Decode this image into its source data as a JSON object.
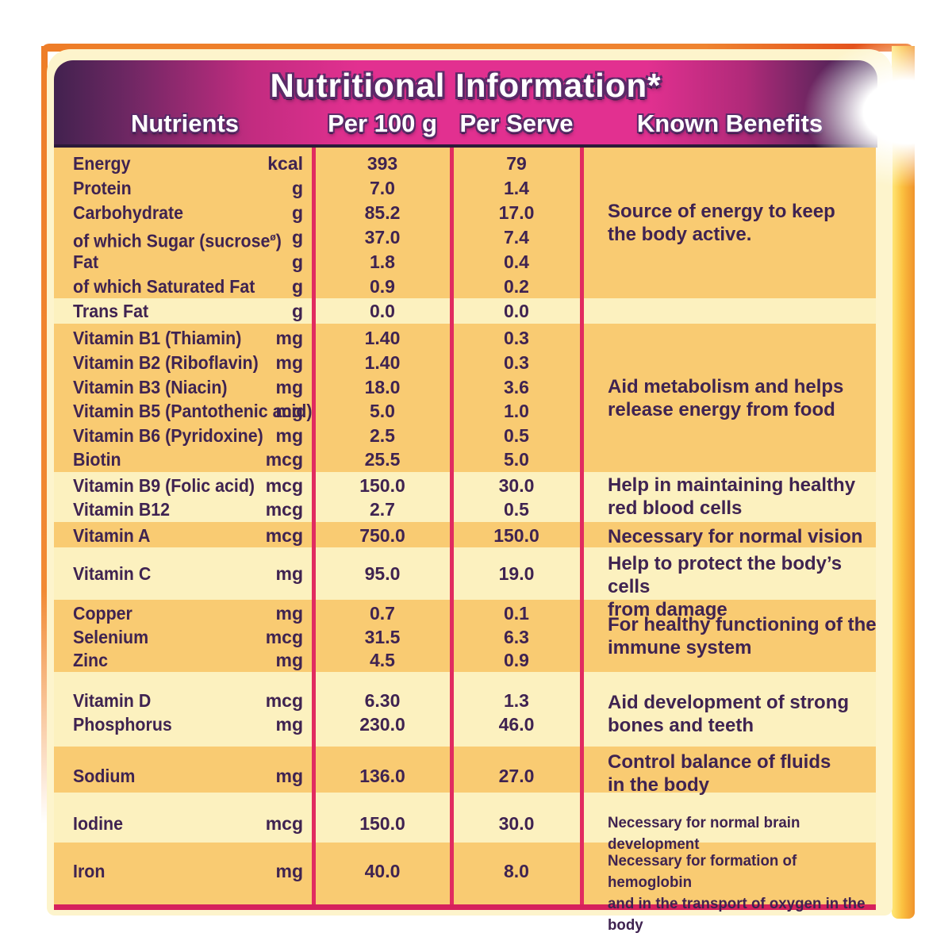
{
  "title": "Nutritional Information*",
  "columns": [
    "Nutrients",
    "Per 100 g",
    "Per Serve",
    "Known Benefits"
  ],
  "rows": [
    {
      "name": "Energy",
      "unit": "kcal",
      "per_100g": "393",
      "per_serve": "79"
    },
    {
      "name": "Protein",
      "unit": "g",
      "per_100g": "7.0",
      "per_serve": "1.4"
    },
    {
      "name": "Carbohydrate",
      "unit": "g",
      "per_100g": "85.2",
      "per_serve": "17.0"
    },
    {
      "name": "of which Sugar (sucrose",
      "sup": "ø",
      "name_end": ")",
      "unit": "g",
      "per_100g": "37.0",
      "per_serve": "7.4"
    },
    {
      "name": "Fat",
      "unit": "g",
      "per_100g": "1.8",
      "per_serve": "0.4"
    },
    {
      "name": "of which Saturated Fat",
      "unit": "g",
      "per_100g": "0.9",
      "per_serve": "0.2"
    },
    {
      "name": "Trans Fat",
      "unit": "g",
      "per_100g": "0.0",
      "per_serve": "0.0"
    },
    {
      "name": "Vitamin B1 (Thiamin)",
      "unit": "mg",
      "per_100g": "1.40",
      "per_serve": "0.3"
    },
    {
      "name": "Vitamin B2 (Riboflavin)",
      "unit": "mg",
      "per_100g": "1.40",
      "per_serve": "0.3"
    },
    {
      "name": "Vitamin B3 (Niacin)",
      "unit": "mg",
      "per_100g": "18.0",
      "per_serve": "3.6"
    },
    {
      "name": "Vitamin B5 (Pantothenic acid)",
      "unit": "mg",
      "per_100g": "5.0",
      "per_serve": "1.0"
    },
    {
      "name": "Vitamin B6 (Pyridoxine)",
      "unit": "mg",
      "per_100g": "2.5",
      "per_serve": "0.5"
    },
    {
      "name": "Biotin",
      "unit": "mcg",
      "per_100g": "25.5",
      "per_serve": "5.0"
    },
    {
      "name": "Vitamin B9 (Folic acid)",
      "unit": "mcg",
      "per_100g": "150.0",
      "per_serve": "30.0"
    },
    {
      "name": "Vitamin B12",
      "unit": "mcg",
      "per_100g": "2.7",
      "per_serve": "0.5"
    },
    {
      "name": "Vitamin A",
      "unit": "mcg",
      "per_100g": "750.0",
      "per_serve": "150.0"
    },
    {
      "name": "Vitamin C",
      "unit": "mg",
      "per_100g": "95.0",
      "per_serve": "19.0"
    },
    {
      "name": "Copper",
      "unit": "mg",
      "per_100g": "0.7",
      "per_serve": "0.1"
    },
    {
      "name": "Selenium",
      "unit": "mcg",
      "per_100g": "31.5",
      "per_serve": "6.3"
    },
    {
      "name": "Zinc",
      "unit": "mg",
      "per_100g": "4.5",
      "per_serve": "0.9"
    },
    {
      "name": "Vitamin D",
      "unit": "mcg",
      "per_100g": "6.30",
      "per_serve": "1.3"
    },
    {
      "name": "Phosphorus",
      "unit": "mg",
      "per_100g": "230.0",
      "per_serve": "46.0"
    },
    {
      "name": "Sodium",
      "unit": "mg",
      "per_100g": "136.0",
      "per_serve": "27.0"
    },
    {
      "name": "Iodine",
      "unit": "mcg",
      "per_100g": "150.0",
      "per_serve": "30.0"
    },
    {
      "name": "Iron",
      "unit": "mg",
      "per_100g": "40.0",
      "per_serve": "8.0"
    }
  ],
  "benefits": [
    {
      "lines": [
        "Source of energy to keep",
        "the body active."
      ]
    },
    {
      "lines": [
        "Aid metabolism and helps",
        "release energy from food"
      ]
    },
    {
      "lines": [
        "Help in maintaining healthy",
        "red blood cells"
      ]
    },
    {
      "lines": [
        "Necessary for normal vision"
      ]
    },
    {
      "lines": [
        "Help to protect the body’s cells",
        "from damage"
      ]
    },
    {
      "lines": [
        "For healthy functioning of the",
        "immune system"
      ]
    },
    {
      "lines": [
        "Aid development of strong",
        "bones and teeth"
      ]
    },
    {
      "lines": [
        "Control balance of fluids",
        "in the body"
      ]
    },
    {
      "lines": [
        "Necessary for normal brain development"
      ]
    },
    {
      "lines": [
        "Necessary for formation of hemoglobin",
        "and in the transport of oxygen in the body"
      ]
    }
  ],
  "colors": {
    "table_cream": "#FCF1BF",
    "panel_cream": "#FDF4CC",
    "band_orange": "#F9CB72",
    "divider_magenta": "#E12B60",
    "header_purple": "#42224F",
    "header_pink": "#E23090",
    "text_ink": "#3F2351",
    "frame_orange": "#EE7D28",
    "frame_gold": "#FBC140"
  }
}
